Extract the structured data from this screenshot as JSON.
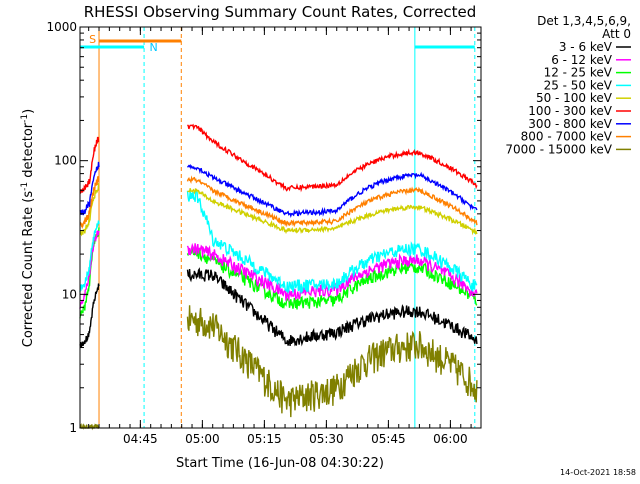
{
  "chart_data": {
    "type": "line",
    "title": "RHESSI Observing Summary Count Rates, Corrected",
    "xlabel": "Start Time (16-Jun-08 04:30:22)",
    "ylabel_main": "Corrected Count Rate (s",
    "ylabel_sup1": "-1",
    "ylabel_mid": " detector",
    "ylabel_sup2": "-1",
    "ylabel_end": ")",
    "y_scale": "log",
    "ylim": [
      1,
      1000
    ],
    "xlim_minutes": [
      0,
      97
    ],
    "x_ticks": [
      {
        "label": "04:45",
        "minute": 14.6
      },
      {
        "label": "05:00",
        "minute": 29.6
      },
      {
        "label": "05:15",
        "minute": 44.6
      },
      {
        "label": "05:30",
        "minute": 59.6
      },
      {
        "label": "05:45",
        "minute": 74.6
      },
      {
        "label": "06:00",
        "minute": 89.6
      }
    ],
    "y_ticks": [
      {
        "label": "1",
        "value": 1
      },
      {
        "label": "10",
        "value": 10
      },
      {
        "label": "100",
        "value": 100
      },
      {
        "label": "1000",
        "value": 1000
      }
    ],
    "legend_header": [
      "Det 1,3,4,5,6,9,",
      "Att 0"
    ],
    "legend_position": "right",
    "series": [
      {
        "name": "3 - 6 keV",
        "color": "#000000",
        "pre": [
          4.2,
          4.5,
          5,
          9,
          12
        ],
        "post_start": 14,
        "pre_flat": 14,
        "dip": 4.5,
        "mid": 5.2,
        "bump": 7.5,
        "end": 4.5
      },
      {
        "name": "6 - 12 keV",
        "color": "#ff00ff",
        "pre": [
          8,
          10,
          14,
          25,
          30
        ],
        "post_start": 22,
        "pre_flat": 20,
        "dip": 10,
        "mid": 11,
        "bump": 18,
        "end": 10
      },
      {
        "name": "12 - 25 keV",
        "color": "#00ff00",
        "pre": [
          7,
          8,
          12,
          25,
          30
        ],
        "post_start": 21,
        "pre_flat": 18,
        "dip": 8.5,
        "mid": 9,
        "bump": 16,
        "end": 9
      },
      {
        "name": "25 - 50 keV",
        "color": "#00ffff",
        "pre": [
          11,
          12,
          16,
          28,
          35
        ],
        "post_start": 55,
        "pre_flat": 26,
        "dip": 11.5,
        "mid": 12,
        "bump": 22,
        "end": 11
      },
      {
        "name": "50 - 100 keV",
        "color": "#d0d000",
        "pre": [
          28,
          30,
          36,
          55,
          65
        ],
        "post_start": 60,
        "pre_flat": 50,
        "dip": 30,
        "mid": 31,
        "bump": 45,
        "end": 29
      },
      {
        "name": "100 - 300 keV",
        "color": "#ff0000",
        "pre": [
          60,
          62,
          70,
          120,
          150
        ],
        "post_start": 180,
        "pre_flat": 140,
        "dip": 62,
        "mid": 66,
        "bump": 115,
        "end": 65
      },
      {
        "name": "300 - 800 keV",
        "color": "#0000ff",
        "pre": [
          40,
          42,
          48,
          75,
          95
        ],
        "post_start": 90,
        "pre_flat": 75,
        "dip": 40,
        "mid": 42,
        "bump": 78,
        "end": 42
      },
      {
        "name": "800 - 7000 keV",
        "color": "#ff8000",
        "pre": [
          33,
          35,
          40,
          62,
          75
        ],
        "post_start": 72,
        "pre_flat": 60,
        "dip": 34,
        "mid": 35,
        "bump": 60,
        "end": 34
      },
      {
        "name": "7000 - 15000 keV",
        "color": "#808000",
        "pre": [
          1,
          1,
          1,
          1,
          1
        ],
        "post_start": 6.5,
        "pre_flat": 6,
        "dip": 1.6,
        "mid": 2,
        "bump": 4.2,
        "end": 2
      }
    ],
    "annotations": [
      {
        "label": "S",
        "color": "#ff8000"
      },
      {
        "label": "N",
        "color": "#00c8ff"
      }
    ],
    "footer_date": "14-Oct-2021 18:58"
  }
}
